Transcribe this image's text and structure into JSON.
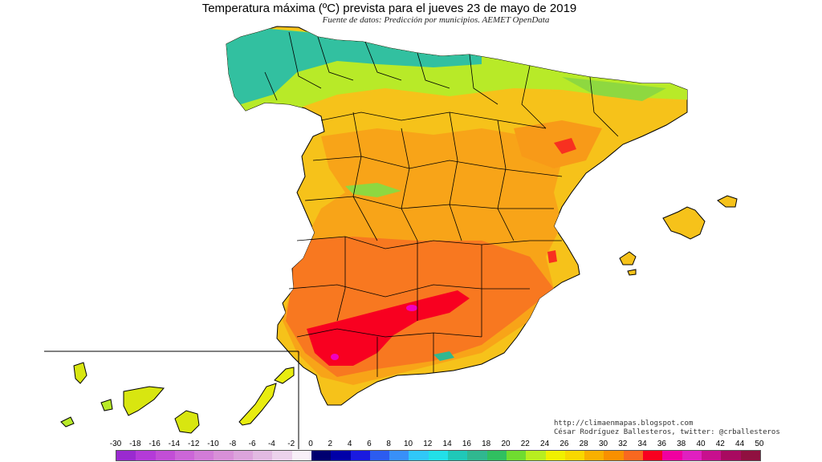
{
  "title": "Temperatura máxima (ºC) prevista para el jueves 23 de mayo de 2019",
  "subtitle": "Fuente de datos: Predicción por municipios. AEMET OpenData",
  "credits": {
    "line1": "http://climaenmapas.blogspot.com",
    "line2": "César Rodríguez Ballesteros, twitter: @crballesteros"
  },
  "legend": {
    "ticks": [
      "-30",
      "-18",
      "-16",
      "-14",
      "-12",
      "-10",
      "-8",
      "-6",
      "-4",
      "-2",
      "0",
      "2",
      "4",
      "6",
      "8",
      "10",
      "12",
      "14",
      "16",
      "18",
      "20",
      "22",
      "24",
      "26",
      "28",
      "30",
      "32",
      "34",
      "36",
      "38",
      "40",
      "42",
      "44",
      "50"
    ],
    "colors": [
      "#9a2ad0",
      "#b43ad8",
      "#c24ed6",
      "#cc66d8",
      "#d27cd8",
      "#d890d8",
      "#dca4dc",
      "#e2bae2",
      "#ecd2ec",
      "#f8f0f8",
      "#000070",
      "#0000a8",
      "#1a1ae0",
      "#2c5cf0",
      "#3890f8",
      "#30c8f8",
      "#22e0e8",
      "#20c8b8",
      "#30b890",
      "#30c060",
      "#70dc30",
      "#b8ee20",
      "#f0f000",
      "#f8d800",
      "#f8b000",
      "#f89000",
      "#f86820",
      "#f80020",
      "#f000a0",
      "#e020c0",
      "#c8108e",
      "#a80a60",
      "#901040"
    ]
  }
}
